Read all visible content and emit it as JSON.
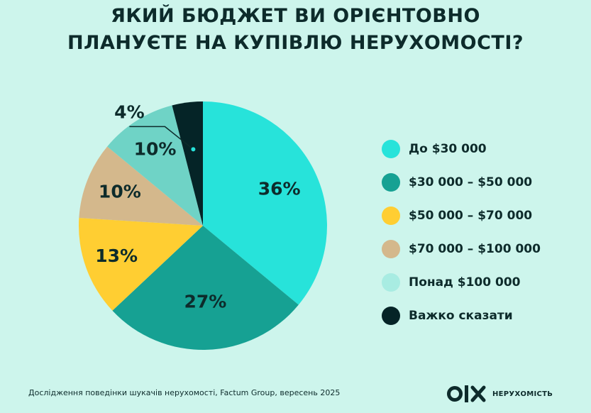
{
  "title": {
    "line1": "ЯКИЙ БЮДЖЕТ ВИ ОРІЄНТОВНО",
    "line2": "ПЛАНУЄТЕ НА КУПІВЛЮ НЕРУХОМОСТІ?"
  },
  "chart_data": {
    "type": "pie",
    "title": "ЯКИЙ БЮДЖЕТ ВИ ОРІЄНТОВНО ПЛАНУЄТЕ НА КУПІВЛЮ НЕРУХОМОСТІ?",
    "legend_position": "right",
    "slices": [
      {
        "name": "До $30 000",
        "value": 36,
        "label": "36%",
        "color": "#27e3da"
      },
      {
        "name": "$30 000 – $50 000",
        "value": 27,
        "label": "27%",
        "color": "#16a193"
      },
      {
        "name": "$50 000 – $70 000",
        "value": 13,
        "label": "13%",
        "color": "#ffce32"
      },
      {
        "name": "$70 000 – $100 000",
        "value": 10,
        "label": "10%",
        "color": "#d4b88c"
      },
      {
        "name": "Понад $100 000",
        "value": 10,
        "label": "10%",
        "color": "#6fd3c6"
      },
      {
        "name": "Важко сказати",
        "value": 4,
        "label": "4%",
        "color": "#052427"
      }
    ]
  },
  "legend": [
    {
      "label": "До $30 000",
      "color": "#27e3da"
    },
    {
      "label": "$30 000 – $50 000",
      "color": "#16a193"
    },
    {
      "label": "$50 000 – $70 000",
      "color": "#ffce32"
    },
    {
      "label": "$70 000 – $100 000",
      "color": "#d4b88c"
    },
    {
      "label": "Понад $100 000",
      "color": "#a8ece2"
    },
    {
      "label": "Важко сказати",
      "color": "#052427"
    }
  ],
  "footer": {
    "source": "Дослідження поведінки шукачів нерухомості, Factum Group, вересень 2025"
  },
  "brand": {
    "logo_text": "O|X",
    "name": "НЕРУХОМІСТЬ"
  }
}
